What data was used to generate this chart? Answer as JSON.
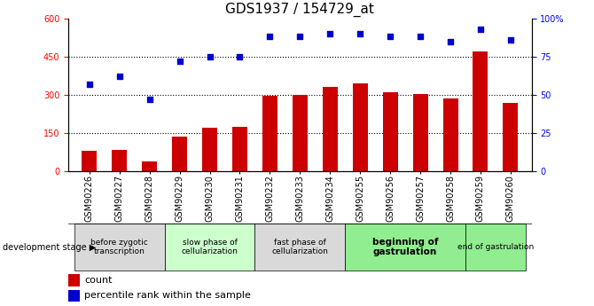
{
  "title": "GDS1937 / 154729_at",
  "samples": [
    "GSM90226",
    "GSM90227",
    "GSM90228",
    "GSM90229",
    "GSM90230",
    "GSM90231",
    "GSM90232",
    "GSM90233",
    "GSM90234",
    "GSM90255",
    "GSM90256",
    "GSM90257",
    "GSM90258",
    "GSM90259",
    "GSM90260"
  ],
  "counts": [
    80,
    85,
    40,
    135,
    170,
    175,
    295,
    300,
    330,
    345,
    310,
    305,
    285,
    470,
    270
  ],
  "percentiles": [
    57,
    62,
    47,
    72,
    75,
    75,
    88,
    88,
    90,
    90,
    88,
    88,
    85,
    93,
    86
  ],
  "ylim_left": [
    0,
    600
  ],
  "ylim_right": [
    0,
    100
  ],
  "yticks_left": [
    0,
    150,
    300,
    450,
    600
  ],
  "yticks_right": [
    0,
    25,
    50,
    75,
    100
  ],
  "yticklabels_right": [
    "0",
    "25",
    "50",
    "75",
    "100%"
  ],
  "bar_color": "#cc0000",
  "dot_color": "#0000cc",
  "stage_groups": [
    {
      "label": "before zygotic\ntranscription",
      "start": 0,
      "end": 3,
      "color": "#d9d9d9"
    },
    {
      "label": "slow phase of\ncellularization",
      "start": 3,
      "end": 6,
      "color": "#ccffcc"
    },
    {
      "label": "fast phase of\ncellularization",
      "start": 6,
      "end": 9,
      "color": "#d9d9d9"
    },
    {
      "label": "beginning of\ngastrulation",
      "start": 9,
      "end": 13,
      "color": "#90ee90"
    },
    {
      "label": "end of gastrulation",
      "start": 13,
      "end": 15,
      "color": "#90ee90"
    }
  ],
  "legend_bar_label": "count",
  "legend_dot_label": "percentile rank within the sample",
  "dev_stage_label": "development stage",
  "title_fontsize": 11,
  "tick_fontsize": 7,
  "bar_width": 0.5,
  "xlim": [
    -0.7,
    14.7
  ],
  "stage_bold": [
    3,
    4
  ],
  "grid_lines": [
    150,
    300,
    450
  ]
}
